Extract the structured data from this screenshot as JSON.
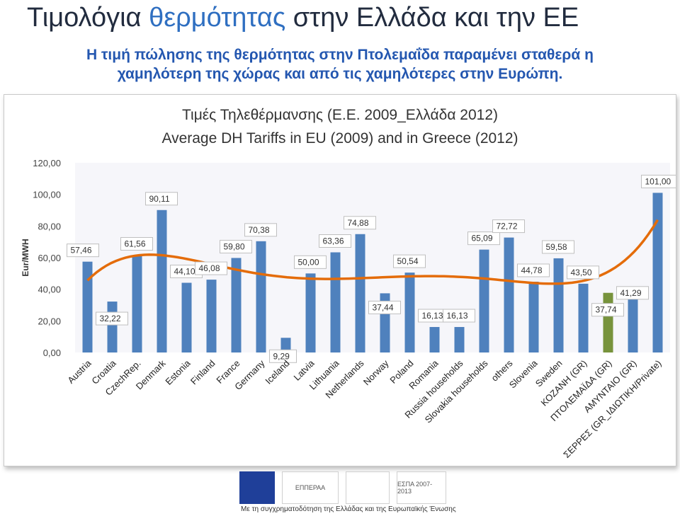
{
  "page": {
    "title_pre": "Τιμολόγια ",
    "title_hl": "θερμότητας",
    "title_post": " στην Ελλάδα και την ΕΕ",
    "subtitle_line1": "Η τιμή πώλησης της θερμότητας στην Πτολεμαΐδα παραμένει σταθερά η",
    "subtitle_line2": "χαμηλότερη της χώρας και από τις χαμηλότερες στην Ευρώπη.",
    "footer_text": "Με τη συγχρηματοδότηση της Ελλάδας και της Ευρωπαϊκής Ένωσης"
  },
  "logos": [
    {
      "name": "eu-flag-logo",
      "label": ""
    },
    {
      "name": "epperaa-logo",
      "label": "ΕΠΠΕΡΑΑ"
    },
    {
      "name": "ministry-logo",
      "label": ""
    },
    {
      "name": "espa-logo",
      "label": "ΕΣΠΑ 2007-2013"
    }
  ],
  "chart_data": {
    "type": "bar",
    "title": "Τιμές Τηλεθέρμανσης (Ε.Ε. 2009_Ελλάδα 2012)",
    "subtitle": "Average DH Tariffs in EU (2009) and in Greece (2012)",
    "ylabel": "Eur/MWH",
    "xlabel": "",
    "ylim": [
      0,
      120
    ],
    "yticks": [
      "0,00",
      "20,00",
      "40,00",
      "60,00",
      "80,00",
      "100,00",
      "120,00"
    ],
    "categories": [
      "Austria",
      "Croatia",
      "CzechRep.",
      "Denmark",
      "Estonia",
      "Finland",
      "France",
      "Germany",
      "Iceland",
      "Latvia",
      "Lithuania",
      "Netherlands",
      "Norway",
      "Poland",
      "Romania",
      "Russia households",
      "Slovakia households",
      "others",
      "Slovenia",
      "Sweden",
      "ΚΟΖΑΝΗ (GR)",
      "ΠΤΟΛΕΜΑΪΔΑ (GR)",
      "ΑΜΥΝΤΑΙΟ (GR)",
      "ΣΕΡΡΕΣ (GR_ΙΔΙΩΤΙΚΗ/Private)"
    ],
    "values": [
      57.46,
      32.22,
      61.56,
      90.11,
      44.1,
      46.08,
      59.8,
      70.38,
      9.29,
      50.0,
      63.36,
      74.88,
      37.44,
      50.54,
      16.13,
      16.13,
      65.09,
      72.72,
      44.78,
      59.58,
      43.5,
      37.74,
      41.29,
      101.0
    ],
    "value_labels": [
      "57,46",
      "32,22",
      "61,56",
      "90,11",
      "44,10",
      "46,08",
      "59,80",
      "70,38",
      "9,29",
      "50,00",
      "63,36",
      "74,88",
      "37,44",
      "50,54",
      "16,13",
      "16,13",
      "65,09",
      "72,72",
      "44,78",
      "59,58",
      "43,50",
      "37,74",
      "41,29",
      "101,00"
    ],
    "bar_color": "#4f81bd",
    "highlight_color": "#77933c",
    "highlight_index": 21,
    "trendline": true,
    "trendline_color": "#e46c0a",
    "grid": false,
    "legend": "none"
  }
}
